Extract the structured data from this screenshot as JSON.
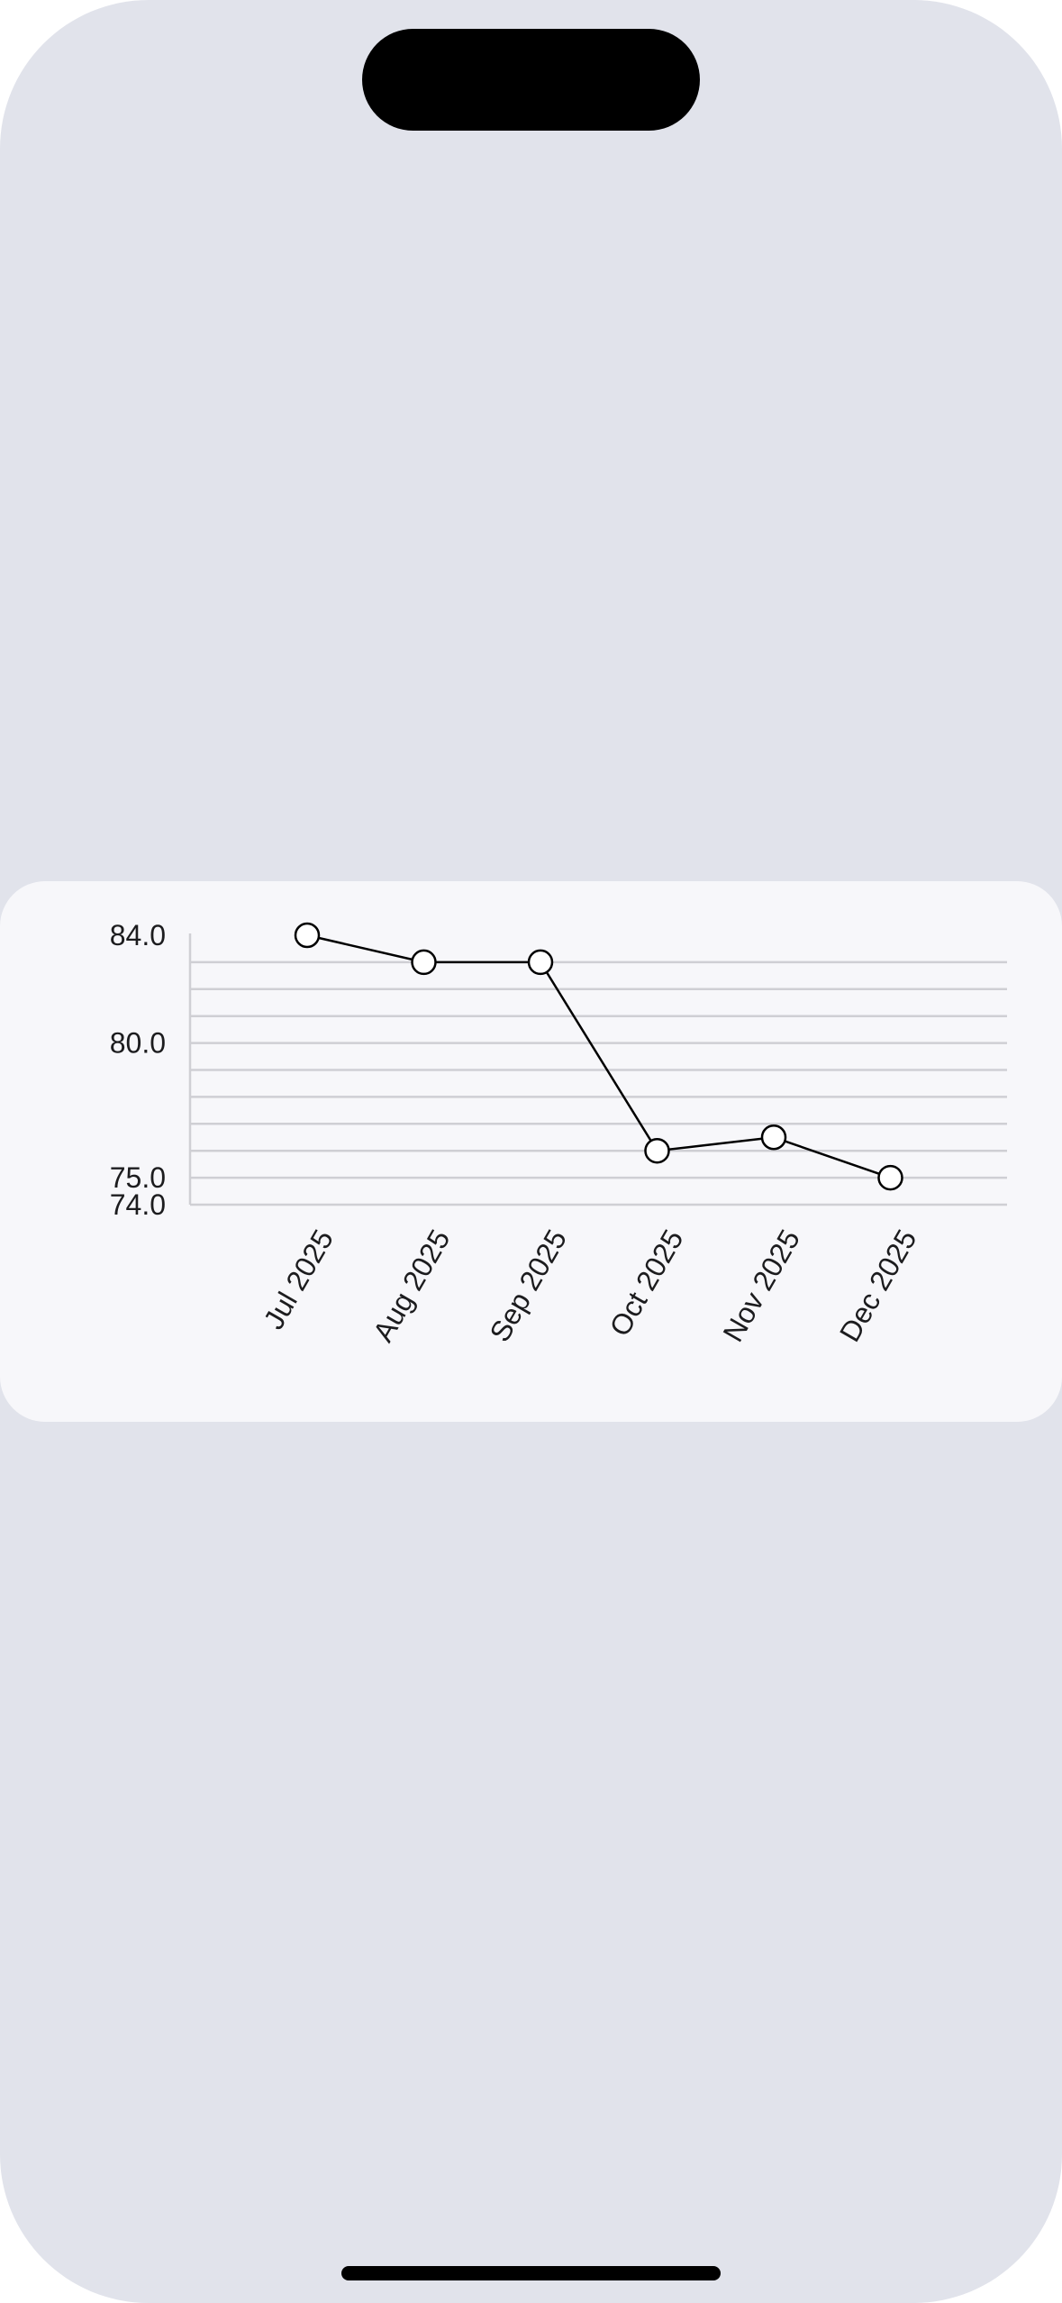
{
  "colors": {
    "background": "#e1e3eb",
    "card": "#f7f7fa",
    "line": "#000000",
    "grid": "#cfcfd4",
    "marker_fill": "#ffffff",
    "text": "#1c1c1e"
  },
  "chart_data": {
    "type": "line",
    "title": "",
    "xlabel": "",
    "ylabel": "",
    "categories": [
      "Jul 2025",
      "Aug 2025",
      "Sep 2025",
      "Oct 2025",
      "Nov 2025",
      "Dec 2025"
    ],
    "series": [
      {
        "values": [
          84.0,
          83.0,
          83.0,
          76.0,
          76.5,
          75.0
        ]
      }
    ],
    "ylim": [
      74.0,
      84.0
    ],
    "y_tick_labels": [
      "84.0",
      "80.0",
      "75.0",
      "74.0"
    ],
    "y_tick_values": [
      84.0,
      80.0,
      75.0,
      74.0
    ],
    "gridlines": [
      75,
      76,
      77,
      78,
      79,
      80,
      81,
      82,
      83
    ],
    "grid": true,
    "legend": "none",
    "markers": "open-circle"
  }
}
